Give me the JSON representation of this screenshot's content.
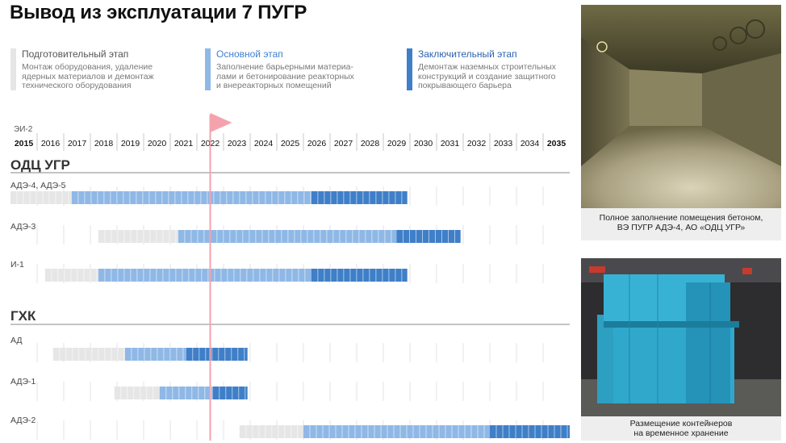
{
  "title": "Вывод из эксплуатации 7 ПУГР",
  "legend": [
    {
      "name": "Подготовительный этап",
      "description": "Монтаж оборудования, удаление\nядерных материалов и демонтаж\nтехнического оборудования",
      "color": "#e6e6e6",
      "name_color": "#555555"
    },
    {
      "name": "Основной этап",
      "description": "Заполнение барьерными материа-\nлами и бетонирование реакторных\nи внереакторных помещений",
      "color": "#8fb8e6",
      "name_color": "#3f7fd0"
    },
    {
      "name": "Заключительный этап",
      "description": "Демонтаж наземных строительных\nконструкций и создание защитного\nпокрывающего барьера",
      "color": "#3f7fc8",
      "name_color": "#2c63ad"
    }
  ],
  "photos": [
    {
      "caption": "Полное заполнение помещения бетоном,\nВЭ ПУГР АДЭ-4, АО «ОДЦ УГР»"
    },
    {
      "caption": "Размещение контейнеров\nна временное хранение"
    }
  ],
  "chart_data": {
    "type": "gantt",
    "x_start_label": "ЭИ-2",
    "years": [
      "2015",
      "2016",
      "2017",
      "2018",
      "2019",
      "2020",
      "2021",
      "2022",
      "2023",
      "2024",
      "2025",
      "2026",
      "2027",
      "2028",
      "2029",
      "2030",
      "2031",
      "2032",
      "2033",
      "2034",
      "2035"
    ],
    "bold_years": [
      "2015",
      "2035"
    ],
    "current_marker_year": 2022.5,
    "marker_color": "#f4a3ad",
    "colors": {
      "prep": "#e6e6e6",
      "main": "#8fb8e6",
      "final": "#3f7fc8"
    },
    "groups": [
      {
        "name": "ОДЦ УГР",
        "rows": [
          {
            "label": "АДЭ-4, АДЭ-5",
            "segments": [
              {
                "phase": "prep",
                "start": 2015.0,
                "end": 2017.3
              },
              {
                "phase": "main",
                "start": 2017.3,
                "end": 2026.3
              },
              {
                "phase": "final",
                "start": 2026.3,
                "end": 2029.9
              }
            ]
          },
          {
            "label": "АДЭ-3",
            "segments": [
              {
                "phase": "prep",
                "start": 2018.3,
                "end": 2021.3
              },
              {
                "phase": "main",
                "start": 2021.3,
                "end": 2029.5
              },
              {
                "phase": "final",
                "start": 2029.5,
                "end": 2031.9
              }
            ]
          },
          {
            "label": "И-1",
            "segments": [
              {
                "phase": "prep",
                "start": 2016.3,
                "end": 2018.3
              },
              {
                "phase": "main",
                "start": 2018.3,
                "end": 2026.3
              },
              {
                "phase": "final",
                "start": 2026.3,
                "end": 2029.9
              }
            ]
          }
        ]
      },
      {
        "name": "ГХК",
        "rows": [
          {
            "label": "АД",
            "segments": [
              {
                "phase": "prep",
                "start": 2016.6,
                "end": 2019.3
              },
              {
                "phase": "main",
                "start": 2019.3,
                "end": 2021.6
              },
              {
                "phase": "final",
                "start": 2021.6,
                "end": 2023.9
              }
            ]
          },
          {
            "label": "АДЭ-1",
            "segments": [
              {
                "phase": "prep",
                "start": 2018.9,
                "end": 2020.6
              },
              {
                "phase": "main",
                "start": 2020.6,
                "end": 2022.6
              },
              {
                "phase": "final",
                "start": 2022.6,
                "end": 2023.9
              }
            ]
          },
          {
            "label": "АДЭ-2",
            "segments": [
              {
                "phase": "prep",
                "start": 2023.6,
                "end": 2026.0
              },
              {
                "phase": "main",
                "start": 2026.0,
                "end": 2033.0
              },
              {
                "phase": "final",
                "start": 2033.0,
                "end": 2036.0
              }
            ]
          }
        ]
      }
    ]
  }
}
